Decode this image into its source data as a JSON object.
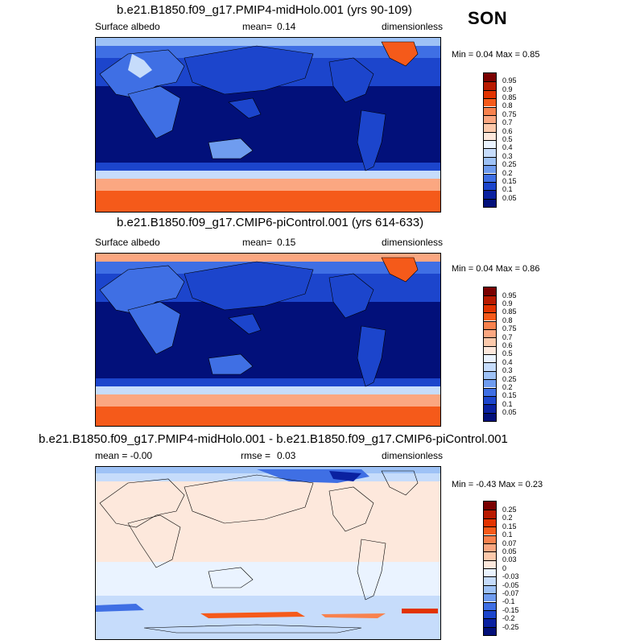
{
  "season": "SON",
  "panels": [
    {
      "title": "b.e21.B1850.f09_g17.PMIP4-midHolo.001 (yrs 90-109)",
      "left_label": "Surface albedo",
      "mean_label": "mean=",
      "mean_value": "0.14",
      "units": "dimensionless",
      "minmax": "Min =  0.04 Max =   0.85",
      "colorbar_labels": [
        "0.95",
        "0.9",
        "0.85",
        "0.8",
        "0.75",
        "0.7",
        "0.6",
        "0.5",
        "0.4",
        "0.3",
        "0.25",
        "0.2",
        "0.15",
        "0.1",
        "0.05"
      ],
      "colorbar_colors": [
        "#7a0000",
        "#b81a00",
        "#e23300",
        "#f55a1a",
        "#f8824e",
        "#fba781",
        "#fcc9ab",
        "#fde8dc",
        "#eaf3ff",
        "#c6dcfb",
        "#9ec2f6",
        "#6f9cef",
        "#3f6fe4",
        "#1c45cc",
        "#0a21a0",
        "#02107a"
      ]
    },
    {
      "title": "b.e21.B1850.f09_g17.CMIP6-piControl.001 (yrs 614-633)",
      "left_label": "Surface albedo",
      "mean_label": "mean=",
      "mean_value": "0.15",
      "units": "dimensionless",
      "minmax": "Min =  0.04 Max =   0.86",
      "colorbar_labels": [
        "0.95",
        "0.9",
        "0.85",
        "0.8",
        "0.75",
        "0.7",
        "0.6",
        "0.5",
        "0.4",
        "0.3",
        "0.25",
        "0.2",
        "0.15",
        "0.1",
        "0.05"
      ],
      "colorbar_colors": [
        "#7a0000",
        "#b81a00",
        "#e23300",
        "#f55a1a",
        "#f8824e",
        "#fba781",
        "#fcc9ab",
        "#fde8dc",
        "#eaf3ff",
        "#c6dcfb",
        "#9ec2f6",
        "#6f9cef",
        "#3f6fe4",
        "#1c45cc",
        "#0a21a0",
        "#02107a"
      ]
    },
    {
      "title": "b.e21.B1850.f09_g17.PMIP4-midHolo.001 - b.e21.B1850.f09_g17.CMIP6-piControl.001",
      "left_label": "mean =  -0.00",
      "rmse_label": "rmse =",
      "rmse_value": "0.03",
      "units": "dimensionless",
      "minmax": "Min =  -0.43 Max =   0.23",
      "colorbar_labels": [
        "0.25",
        "0.2",
        "0.15",
        "0.1",
        "0.07",
        "0.05",
        "0.03",
        "0",
        "-0.03",
        "-0.05",
        "-0.07",
        "-0.1",
        "-0.15",
        "-0.2",
        "-0.25"
      ],
      "colorbar_colors": [
        "#7a0000",
        "#b81a00",
        "#e23300",
        "#f55a1a",
        "#f8824e",
        "#fba781",
        "#fcc9ab",
        "#fde8dc",
        "#eaf3ff",
        "#c6dcfb",
        "#9ec2f6",
        "#6f9cef",
        "#3f6fe4",
        "#1c45cc",
        "#0a21a0",
        "#02107a"
      ]
    }
  ]
}
